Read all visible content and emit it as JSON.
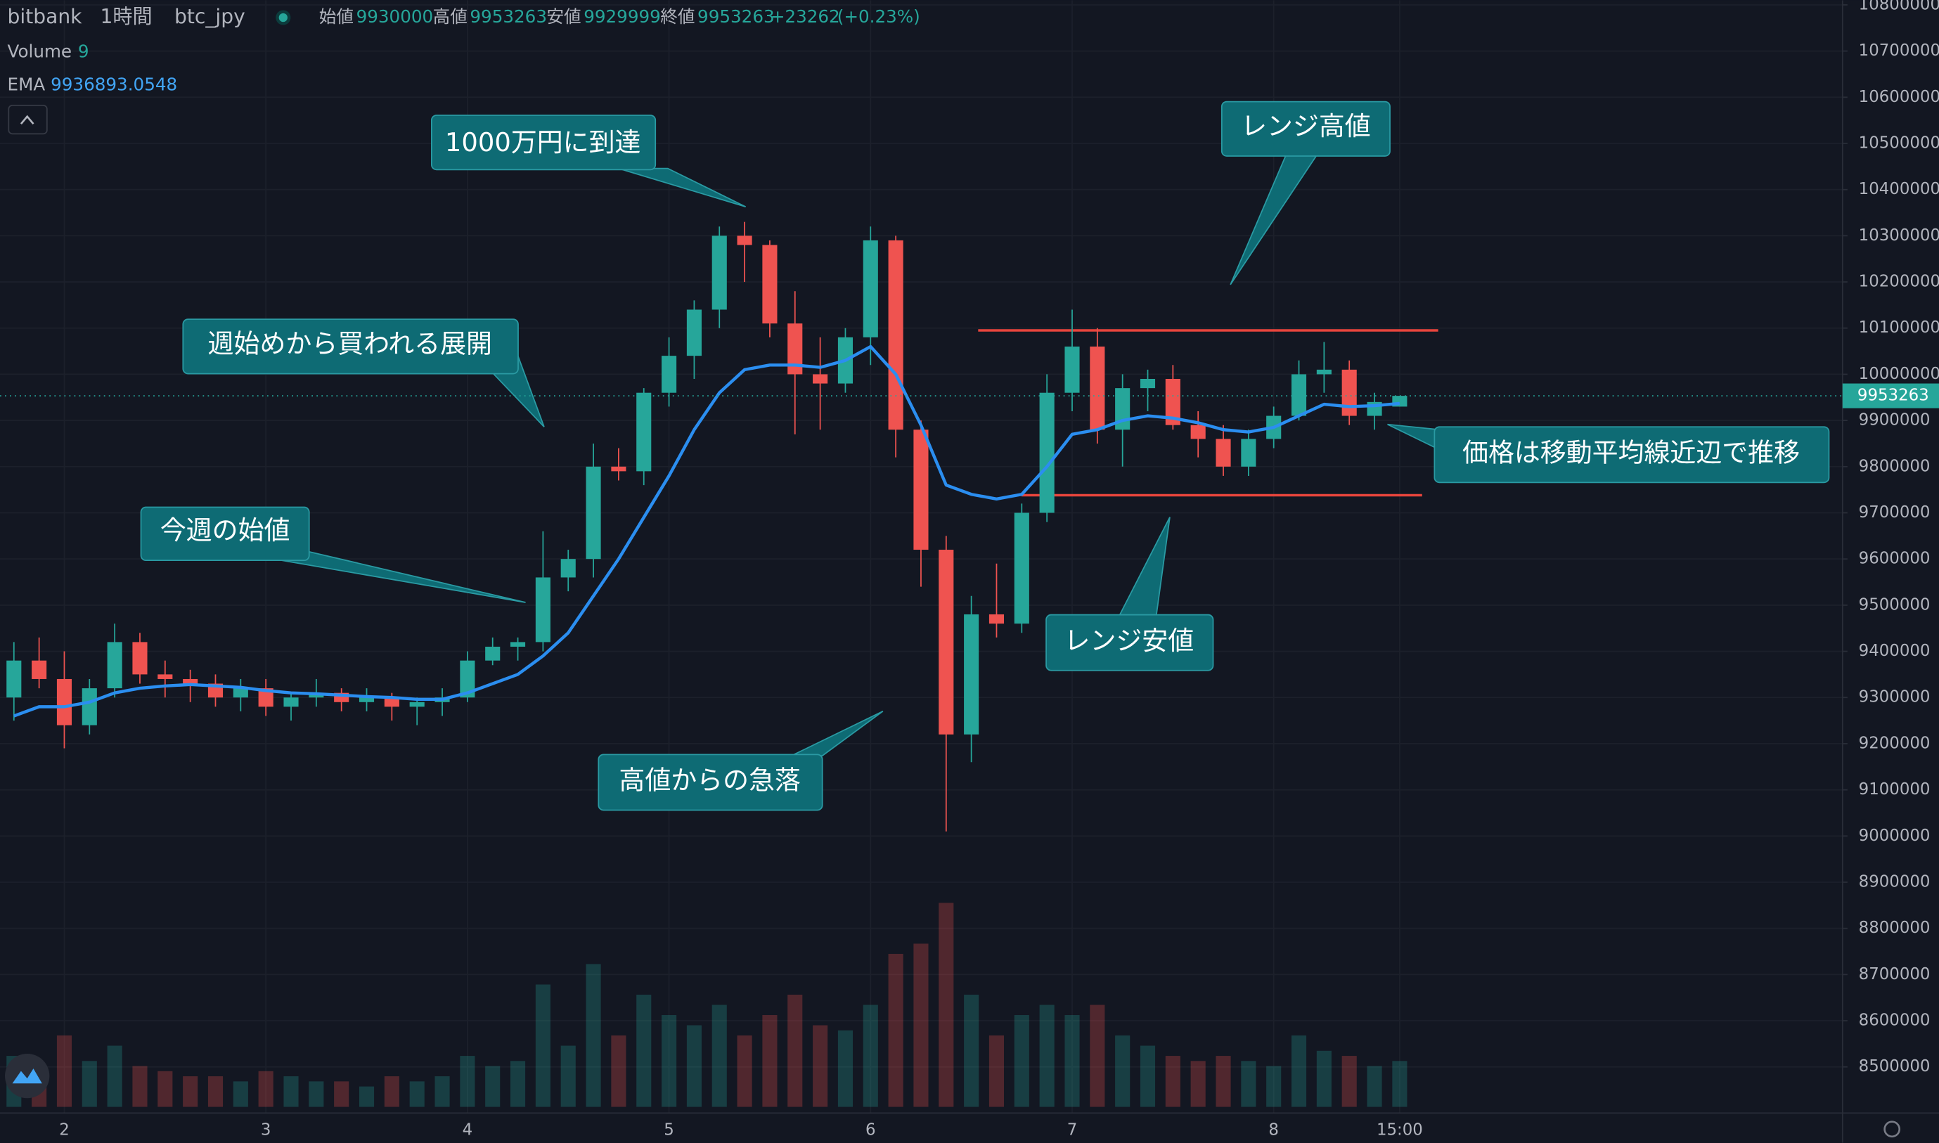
{
  "chart_data": {
    "type": "candlestick",
    "exchange": "bitbank",
    "interval": "1時間",
    "pair": "btc_jpy",
    "ohlc_labels": {
      "open": "始値",
      "high": "高値",
      "low": "安値",
      "close": "終値"
    },
    "change": "+23262",
    "change_pct": "(+0.23%)",
    "volume_label": "Volume",
    "ema_label": "EMA",
    "up_color": "#26a69a",
    "down_color": "#ef5350",
    "ema_color": "#2b8ef0",
    "level_color": "#e8453c",
    "categories": [
      null,
      null,
      "2",
      null,
      null,
      null,
      null,
      null,
      null,
      null,
      "3",
      null,
      null,
      null,
      null,
      null,
      null,
      null,
      "4",
      null,
      null,
      null,
      null,
      null,
      null,
      null,
      "5",
      null,
      null,
      null,
      null,
      null,
      null,
      null,
      "6",
      null,
      null,
      null,
      null,
      null,
      null,
      null,
      "7",
      null,
      null,
      null,
      null,
      null,
      null,
      null,
      "8",
      null,
      null,
      null,
      null,
      "15:00"
    ],
    "open": [
      9300000,
      9380000,
      9340000,
      9240000,
      9320000,
      9420000,
      9350000,
      9340000,
      9330000,
      9300000,
      9320000,
      9280000,
      9300000,
      9310000,
      9290000,
      9300000,
      9280000,
      9290000,
      9300000,
      9380000,
      9410000,
      9420000,
      9560000,
      9600000,
      9800000,
      9790000,
      9960000,
      10040000,
      10140000,
      10300000,
      10280000,
      10110000,
      10000000,
      9980000,
      10080000,
      10290000,
      9880000,
      9620000,
      9220000,
      9480000,
      9460000,
      9700000,
      9960000,
      10060000,
      9880000,
      9970000,
      9990000,
      9890000,
      9860000,
      9800000,
      9860000,
      9910000,
      10000000,
      10010000,
      9910000,
      9930000
    ],
    "high": [
      9420000,
      9430000,
      9400000,
      9340000,
      9460000,
      9440000,
      9380000,
      9360000,
      9350000,
      9340000,
      9340000,
      9310000,
      9340000,
      9320000,
      9320000,
      9310000,
      9300000,
      9320000,
      9400000,
      9430000,
      9430000,
      9660000,
      9620000,
      9850000,
      9840000,
      9970000,
      10080000,
      10160000,
      10320000,
      10330000,
      10290000,
      10180000,
      10080000,
      10100000,
      10320000,
      10300000,
      9900000,
      9650000,
      9520000,
      9590000,
      9720000,
      10000000,
      10140000,
      10100000,
      10000000,
      10010000,
      10020000,
      9920000,
      9890000,
      9880000,
      9930000,
      10030000,
      10070000,
      10030000,
      9960000,
      9953263
    ],
    "low": [
      9250000,
      9320000,
      9190000,
      9220000,
      9300000,
      9330000,
      9300000,
      9290000,
      9280000,
      9270000,
      9260000,
      9250000,
      9280000,
      9270000,
      9270000,
      9250000,
      9240000,
      9260000,
      9290000,
      9370000,
      9380000,
      9400000,
      9530000,
      9560000,
      9770000,
      9760000,
      9930000,
      9990000,
      10100000,
      10200000,
      10080000,
      9870000,
      9880000,
      9960000,
      10020000,
      9820000,
      9540000,
      9010000,
      9160000,
      9430000,
      9440000,
      9680000,
      9920000,
      9850000,
      9800000,
      9920000,
      9880000,
      9820000,
      9780000,
      9780000,
      9840000,
      9900000,
      9960000,
      9890000,
      9880000,
      9929999
    ],
    "close": [
      9380000,
      9340000,
      9240000,
      9320000,
      9420000,
      9350000,
      9340000,
      9330000,
      9300000,
      9320000,
      9280000,
      9300000,
      9310000,
      9290000,
      9300000,
      9280000,
      9290000,
      9300000,
      9380000,
      9410000,
      9420000,
      9560000,
      9600000,
      9800000,
      9790000,
      9960000,
      10040000,
      10140000,
      10300000,
      10280000,
      10110000,
      10000000,
      9980000,
      10080000,
      10290000,
      9880000,
      9620000,
      9220000,
      9480000,
      9460000,
      9700000,
      9960000,
      10060000,
      9880000,
      9970000,
      9990000,
      9890000,
      9860000,
      9800000,
      9860000,
      9910000,
      10000000,
      10010000,
      9910000,
      9940000,
      9953263
    ],
    "volume": [
      10,
      8,
      14,
      9,
      12,
      8,
      7,
      6,
      6,
      5,
      7,
      6,
      5,
      5,
      4,
      6,
      5,
      6,
      10,
      8,
      9,
      24,
      12,
      28,
      14,
      22,
      18,
      16,
      20,
      14,
      18,
      22,
      16,
      15,
      20,
      30,
      32,
      40,
      22,
      14,
      18,
      20,
      18,
      20,
      14,
      12,
      10,
      9,
      10,
      9,
      8,
      14,
      11,
      10,
      8,
      9
    ],
    "ema": [
      9260000,
      9280000,
      9280000,
      9290000,
      9310000,
      9320000,
      9325000,
      9328000,
      9325000,
      9322000,
      9315000,
      9310000,
      9308000,
      9305000,
      9302000,
      9300000,
      9296000,
      9296000,
      9310000,
      9330000,
      9350000,
      9390000,
      9440000,
      9520000,
      9600000,
      9690000,
      9780000,
      9880000,
      9960000,
      10010000,
      10020000,
      10020000,
      10015000,
      10030000,
      10060000,
      10000000,
      9890000,
      9760000,
      9740000,
      9730000,
      9740000,
      9800000,
      9870000,
      9880000,
      9900000,
      9910000,
      9905000,
      9895000,
      9880000,
      9875000,
      9885000,
      9910000,
      9935000,
      9930000,
      9932000,
      9936893.0548
    ],
    "levels": [
      10095000,
      9738000
    ],
    "ylim": [
      8400000,
      10810000
    ],
    "yticks": [
      8500000,
      8600000,
      8700000,
      8800000,
      8900000,
      9000000,
      9100000,
      9200000,
      9300000,
      9400000,
      9500000,
      9600000,
      9700000,
      9800000,
      9900000,
      10000000,
      10100000,
      10200000,
      10300000,
      10400000,
      10500000,
      10600000,
      10700000,
      10800000
    ],
    "grid": true,
    "annotations": [
      "1000万円に到達",
      "週始めから買われる展開",
      "今週の始値",
      "高値からの急落",
      "レンジ高値",
      "レンジ安値",
      "価格は移動平均線近辺で推移"
    ]
  }
}
